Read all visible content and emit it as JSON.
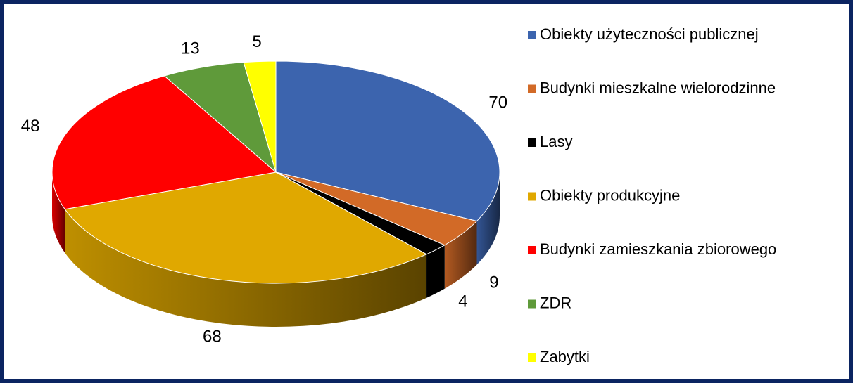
{
  "chart_data": {
    "type": "pie",
    "categories": [
      "Obiekty użyteczności publicznej",
      "Budynki mieszkalne wielorodzinne",
      "Lasy",
      "Obiekty produkcyjne",
      "Budynki zamieszkania zbiorowego",
      "ZDR",
      "Zabytki"
    ],
    "values": [
      70,
      9,
      4,
      68,
      48,
      13,
      5
    ],
    "colors": [
      "#3c64ae",
      "#d26a27",
      "#000000",
      "#e0a800",
      "#ff0000",
      "#5f9a3a",
      "#ffff00"
    ],
    "legend": "right"
  }
}
